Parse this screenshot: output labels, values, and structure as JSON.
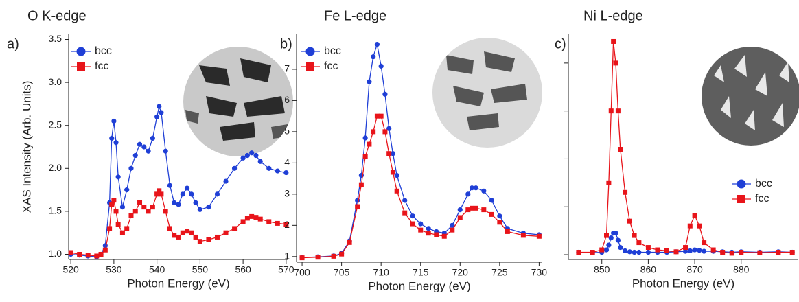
{
  "chart_data": [
    {
      "type": "line",
      "title": "O K-edge",
      "panel_label": "a)",
      "xlabel": "Photon Energy (eV)",
      "ylabel": "XAS Intensity (Arb. Units)",
      "legend": "upper left",
      "x": [
        520,
        522,
        524,
        526,
        527,
        528,
        529,
        529.5,
        530,
        530.5,
        531,
        532,
        533,
        534,
        535,
        536,
        537,
        538,
        539,
        540,
        540.5,
        541,
        542,
        543,
        544,
        545,
        546,
        547,
        548,
        549,
        550,
        552,
        554,
        556,
        558,
        560,
        561,
        562,
        563,
        564,
        566,
        568,
        570
      ],
      "series": [
        {
          "name": "bcc",
          "color": "#1f3fd6",
          "marker": "circle",
          "values": [
            1.0,
            0.99,
            0.98,
            0.97,
            1.0,
            1.1,
            1.6,
            2.35,
            2.55,
            2.3,
            1.9,
            1.55,
            1.75,
            2.0,
            2.15,
            2.28,
            2.25,
            2.2,
            2.35,
            2.6,
            2.72,
            2.65,
            2.2,
            1.8,
            1.6,
            1.58,
            1.7,
            1.77,
            1.7,
            1.6,
            1.52,
            1.55,
            1.7,
            1.85,
            2.0,
            2.12,
            2.15,
            2.18,
            2.15,
            2.08,
            2.0,
            1.97,
            1.95
          ]
        },
        {
          "name": "fcc",
          "color": "#e8141a",
          "marker": "square",
          "values": [
            1.02,
            1.0,
            0.99,
            0.98,
            1.0,
            1.05,
            1.3,
            1.58,
            1.63,
            1.5,
            1.35,
            1.25,
            1.3,
            1.45,
            1.5,
            1.6,
            1.55,
            1.5,
            1.55,
            1.7,
            1.74,
            1.7,
            1.5,
            1.3,
            1.22,
            1.2,
            1.25,
            1.27,
            1.25,
            1.2,
            1.15,
            1.17,
            1.2,
            1.25,
            1.3,
            1.38,
            1.42,
            1.44,
            1.43,
            1.41,
            1.38,
            1.36,
            1.35
          ]
        }
      ],
      "xlim": [
        519.5,
        570.5
      ],
      "ylim": [
        0.94,
        3.56
      ],
      "xticks": [
        520,
        530,
        540,
        550,
        560,
        570
      ],
      "yticks": [
        {
          "value": 1,
          "label": "1.0"
        },
        1.5,
        {
          "value": 2,
          "label": "2.0"
        },
        2.5,
        {
          "value": 3,
          "label": "3.0"
        },
        3.5
      ]
    },
    {
      "type": "line",
      "title": "Fe L-edge",
      "panel_label": "b)",
      "xlabel": "Photon Energy (eV)",
      "legend": "upper left",
      "x": [
        700,
        702,
        704,
        705,
        706,
        707,
        707.5,
        708,
        708.5,
        709,
        709.5,
        710,
        710.5,
        711,
        711.5,
        712,
        713,
        714,
        715,
        716,
        717,
        718,
        719,
        720,
        721,
        721.5,
        722,
        723,
        724,
        725,
        726,
        728,
        730
      ],
      "series": [
        {
          "name": "bcc",
          "color": "#1f3fd6",
          "marker": "circle",
          "values": [
            0.97,
            0.99,
            1.02,
            1.1,
            1.5,
            2.8,
            3.6,
            4.8,
            6.6,
            7.4,
            7.8,
            7.1,
            6.2,
            5.1,
            4.3,
            3.6,
            2.8,
            2.3,
            2.05,
            1.9,
            1.8,
            1.75,
            2.0,
            2.5,
            3.0,
            3.2,
            3.2,
            3.1,
            2.8,
            2.3,
            1.9,
            1.75,
            1.7
          ]
        },
        {
          "name": "fcc",
          "color": "#e8141a",
          "marker": "square",
          "values": [
            0.96,
            0.98,
            1.01,
            1.08,
            1.45,
            2.6,
            3.3,
            4.2,
            4.6,
            5.0,
            5.5,
            5.5,
            5.0,
            4.3,
            3.7,
            3.1,
            2.4,
            2.05,
            1.85,
            1.75,
            1.7,
            1.65,
            1.85,
            2.25,
            2.5,
            2.55,
            2.55,
            2.5,
            2.35,
            2.1,
            1.8,
            1.68,
            1.65
          ]
        }
      ],
      "xlim": [
        699.3,
        730.4
      ],
      "ylim": [
        0.82,
        8.12
      ],
      "xticks": [
        700,
        705,
        710,
        715,
        720,
        725,
        730
      ],
      "yticks": [
        1,
        2,
        3,
        4,
        5,
        6,
        7
      ]
    },
    {
      "type": "line",
      "title": "Ni L-edge",
      "panel_label": "c)",
      "xlabel": "Photon Energy (eV)",
      "legend": "lower right",
      "ytick_labels": false,
      "x": [
        845,
        848,
        850,
        851,
        851.5,
        852,
        852.5,
        853,
        853.5,
        854,
        855,
        856,
        857,
        858,
        860,
        862,
        864,
        866,
        868,
        869,
        870,
        871,
        872,
        874,
        876,
        878,
        880,
        884,
        888,
        891
      ],
      "series": [
        {
          "name": "bcc",
          "color": "#1f3fd6",
          "marker": "circle",
          "values": [
            0.05,
            0.04,
            0.05,
            0.1,
            0.2,
            0.35,
            0.45,
            0.45,
            0.3,
            0.15,
            0.08,
            0.06,
            0.05,
            0.05,
            0.05,
            0.05,
            0.05,
            0.06,
            0.07,
            0.08,
            0.1,
            0.09,
            0.07,
            0.07,
            0.06,
            0.05,
            0.06,
            0.05,
            0.06,
            0.05
          ]
        },
        {
          "name": "fcc",
          "color": "#e8141a",
          "marker": "square",
          "values": [
            0.05,
            0.05,
            0.1,
            0.4,
            1.5,
            3.0,
            4.45,
            4.0,
            3.0,
            2.2,
            1.3,
            0.7,
            0.4,
            0.25,
            0.15,
            0.1,
            0.08,
            0.06,
            0.15,
            0.6,
            0.82,
            0.6,
            0.25,
            0.1,
            0.05,
            0.03,
            0.05,
            0.04,
            0.05,
            0.05
          ]
        }
      ],
      "xlim": [
        842.8,
        892.3
      ],
      "ylim": [
        -0.1,
        4.6
      ],
      "xticks": [
        850,
        860,
        870,
        880
      ],
      "yticks": [
        0,
        1,
        2,
        3,
        4
      ]
    }
  ]
}
